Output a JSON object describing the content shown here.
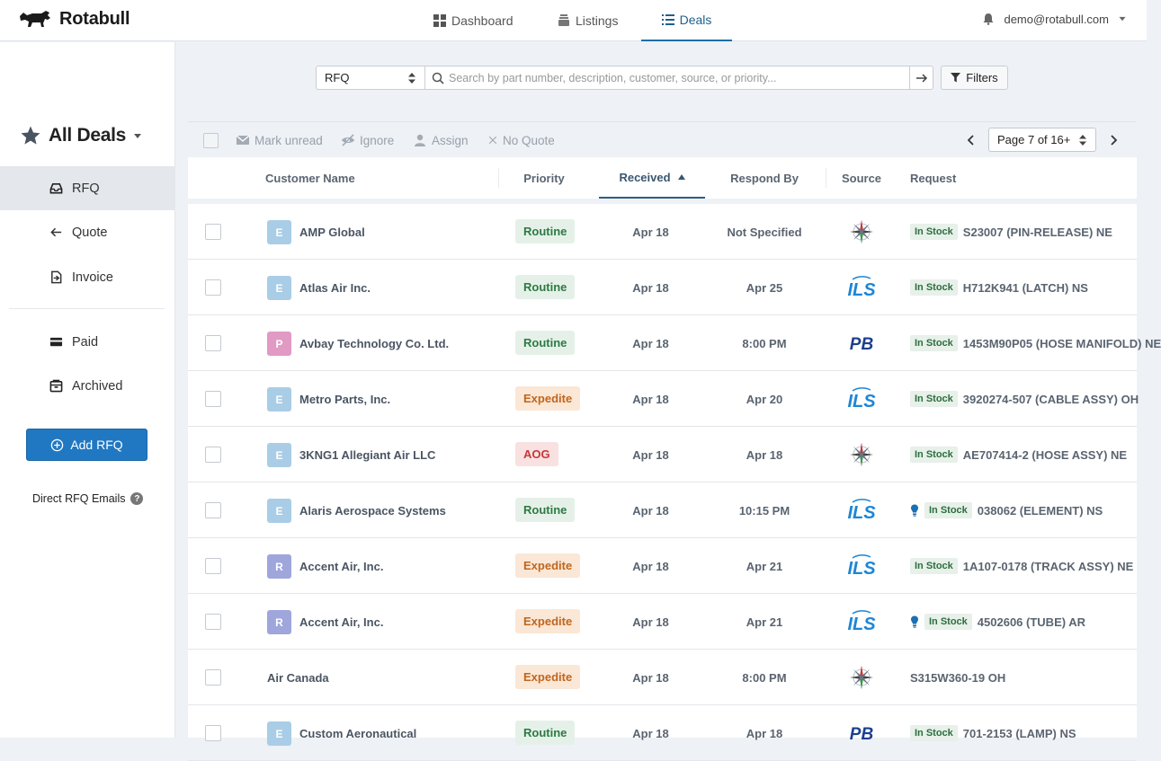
{
  "brand": {
    "name": "Rotabull"
  },
  "nav": {
    "tabs": [
      {
        "label": "Dashboard",
        "icon": "grid-icon"
      },
      {
        "label": "Listings",
        "icon": "stack-icon"
      },
      {
        "label": "Deals",
        "icon": "list-icon",
        "active": true
      }
    ],
    "user_email": "demo@rotabull.com"
  },
  "sidebar": {
    "title": "All Deals",
    "items": [
      {
        "label": "RFQ",
        "icon": "inbox-icon",
        "active": true
      },
      {
        "label": "Quote",
        "icon": "arrow-left-icon"
      },
      {
        "label": "Invoice",
        "icon": "invoice-icon"
      },
      {
        "label": "Paid",
        "icon": "credit-card-icon"
      },
      {
        "label": "Archived",
        "icon": "archive-icon"
      }
    ],
    "add_button": "Add RFQ",
    "direct_emails": "Direct RFQ Emails",
    "help": "?"
  },
  "search": {
    "type_value": "RFQ",
    "placeholder": "Search by part number, description, customer, source, or priority...",
    "filters_label": "Filters"
  },
  "toolbar": {
    "mark_unread": "Mark unread",
    "ignore": "Ignore",
    "assign": "Assign",
    "no_quote": "No Quote",
    "page_label": "Page 7 of 16+"
  },
  "table": {
    "headers": {
      "customer": "Customer Name",
      "priority": "Priority",
      "received": "Received",
      "respond_by": "Respond By",
      "source": "Source",
      "request": "Request"
    },
    "rows": [
      {
        "avatar": "E",
        "avatar_color": "#a9cde6",
        "customer": "AMP Global",
        "priority": "Routine",
        "received": "Apr 18",
        "respond_by": "Not Specified",
        "source": "compass",
        "in_stock": "In Stock",
        "hint": false,
        "request": "S23007 (PIN-RELEASE) NE"
      },
      {
        "avatar": "E",
        "avatar_color": "#a9cde6",
        "customer": "Atlas Air Inc.",
        "priority": "Routine",
        "received": "Apr 18",
        "respond_by": "Apr 25",
        "source": "ils",
        "in_stock": "In Stock",
        "hint": false,
        "request": "H712K941 (LATCH) NS"
      },
      {
        "avatar": "P",
        "avatar_color": "#e19ac4",
        "customer": "Avbay Technology Co. Ltd.",
        "priority": "Routine",
        "received": "Apr 18",
        "respond_by": "8:00 PM",
        "source": "pb",
        "in_stock": "In Stock",
        "hint": false,
        "request": "1453M90P05 (HOSE MANIFOLD) NE"
      },
      {
        "avatar": "E",
        "avatar_color": "#a9cde6",
        "customer": "Metro Parts, Inc.",
        "priority": "Expedite",
        "received": "Apr 18",
        "respond_by": "Apr 20",
        "source": "ils",
        "in_stock": "In Stock",
        "hint": false,
        "request": "3920274-507 (CABLE ASSY) OH"
      },
      {
        "avatar": "E",
        "avatar_color": "#a9cde6",
        "customer": "3KNG1 Allegiant Air LLC",
        "priority": "AOG",
        "received": "Apr 18",
        "respond_by": "Apr 18",
        "source": "compass",
        "in_stock": "In Stock",
        "hint": false,
        "request": "AE707414-2 (HOSE ASSY) NE"
      },
      {
        "avatar": "E",
        "avatar_color": "#a9cde6",
        "customer": "Alaris Aerospace Systems",
        "priority": "Routine",
        "received": "Apr 18",
        "respond_by": "10:15 PM",
        "source": "ils",
        "in_stock": "In Stock",
        "hint": true,
        "request": "038062 (ELEMENT) NS"
      },
      {
        "avatar": "R",
        "avatar_color": "#9ea6dc",
        "customer": "Accent Air, Inc.",
        "priority": "Expedite",
        "received": "Apr 18",
        "respond_by": "Apr 21",
        "source": "ils",
        "in_stock": "In Stock",
        "hint": false,
        "request": "1A107-0178 (TRACK ASSY) NE"
      },
      {
        "avatar": "R",
        "avatar_color": "#9ea6dc",
        "customer": "Accent Air, Inc.",
        "priority": "Expedite",
        "received": "Apr 18",
        "respond_by": "Apr 21",
        "source": "ils",
        "in_stock": "In Stock",
        "hint": true,
        "request": "4502606 (TUBE) AR"
      },
      {
        "avatar": "",
        "avatar_color": "",
        "customer": "Air Canada",
        "priority": "Expedite",
        "received": "Apr 18",
        "respond_by": "8:00 PM",
        "source": "compass",
        "in_stock": "",
        "hint": false,
        "request": "S315W360-19 OH"
      },
      {
        "avatar": "E",
        "avatar_color": "#a9cde6",
        "customer": "Custom Aeronautical",
        "priority": "Routine",
        "received": "Apr 18",
        "respond_by": "Apr 18",
        "source": "pb",
        "in_stock": "In Stock",
        "hint": false,
        "request": "701-2153 (LAMP) NS"
      }
    ]
  },
  "colors": {
    "accent": "#2178c2",
    "routine_bg": "#e5f1e8",
    "routine_fg": "#2d7a43",
    "expedite_bg": "#fbe7d6",
    "expedite_fg": "#c0661d",
    "aog_bg": "#f9e1e1",
    "aog_fg": "#c6373a",
    "ils_blue": "#1d86d6",
    "pb_navy": "#1c3f8c"
  }
}
